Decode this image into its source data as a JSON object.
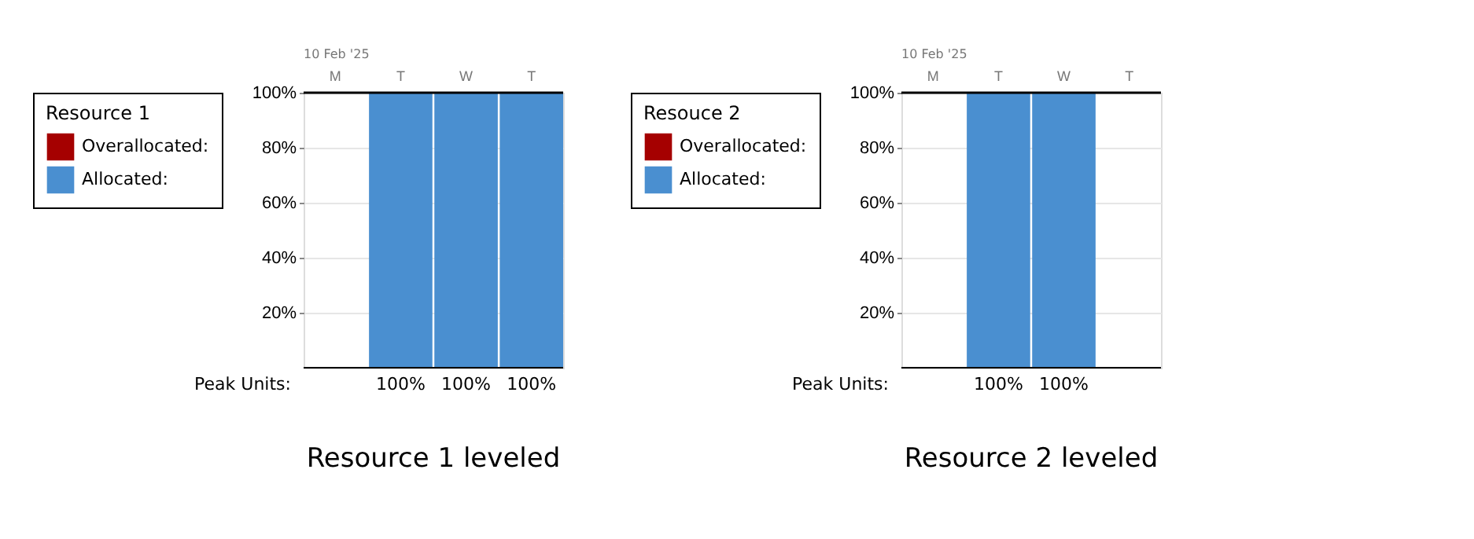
{
  "chart_data": [
    {
      "type": "bar",
      "title": "Resource 1 leveled",
      "legend_title": "Resource 1",
      "categories": [
        "M",
        "T",
        "W",
        "T"
      ],
      "series": [
        {
          "name": "Overallocated:",
          "color": "#a50000",
          "values": [
            null,
            null,
            null,
            null
          ]
        },
        {
          "name": "Allocated:",
          "color": "#4a8fd0",
          "values": [
            null,
            100,
            100,
            100
          ],
          "value_labels": [
            null,
            "100%",
            "100%",
            "100%"
          ]
        }
      ],
      "ylim": [
        0,
        100
      ],
      "yticks": [
        {
          "value": 20,
          "label": "20%"
        },
        {
          "value": 40,
          "label": "40%"
        },
        {
          "value": 60,
          "label": "60%"
        },
        {
          "value": 80,
          "label": "80%"
        },
        {
          "value": 100,
          "label": "100%"
        }
      ],
      "grid": "y",
      "legend": "left",
      "annotations": [
        "10 Feb '25",
        "Peak Units:"
      ]
    },
    {
      "type": "bar",
      "title": "Resource 2 leveled",
      "legend_title": "Resouce 2",
      "categories": [
        "M",
        "T",
        "W",
        "T"
      ],
      "series": [
        {
          "name": "Overallocated:",
          "color": "#a50000",
          "values": [
            null,
            null,
            null,
            null
          ]
        },
        {
          "name": "Allocated:",
          "color": "#4a8fd0",
          "values": [
            null,
            100,
            100,
            null
          ],
          "value_labels": [
            null,
            "100%",
            "100%",
            null
          ]
        }
      ],
      "ylim": [
        0,
        100
      ],
      "yticks": [
        {
          "value": 20,
          "label": "20%"
        },
        {
          "value": 40,
          "label": "40%"
        },
        {
          "value": 60,
          "label": "60%"
        },
        {
          "value": 80,
          "label": "80%"
        },
        {
          "value": 100,
          "label": "100%"
        }
      ],
      "grid": "y",
      "legend": "left",
      "annotations": [
        "10 Feb '25",
        "Peak Units:"
      ]
    }
  ]
}
